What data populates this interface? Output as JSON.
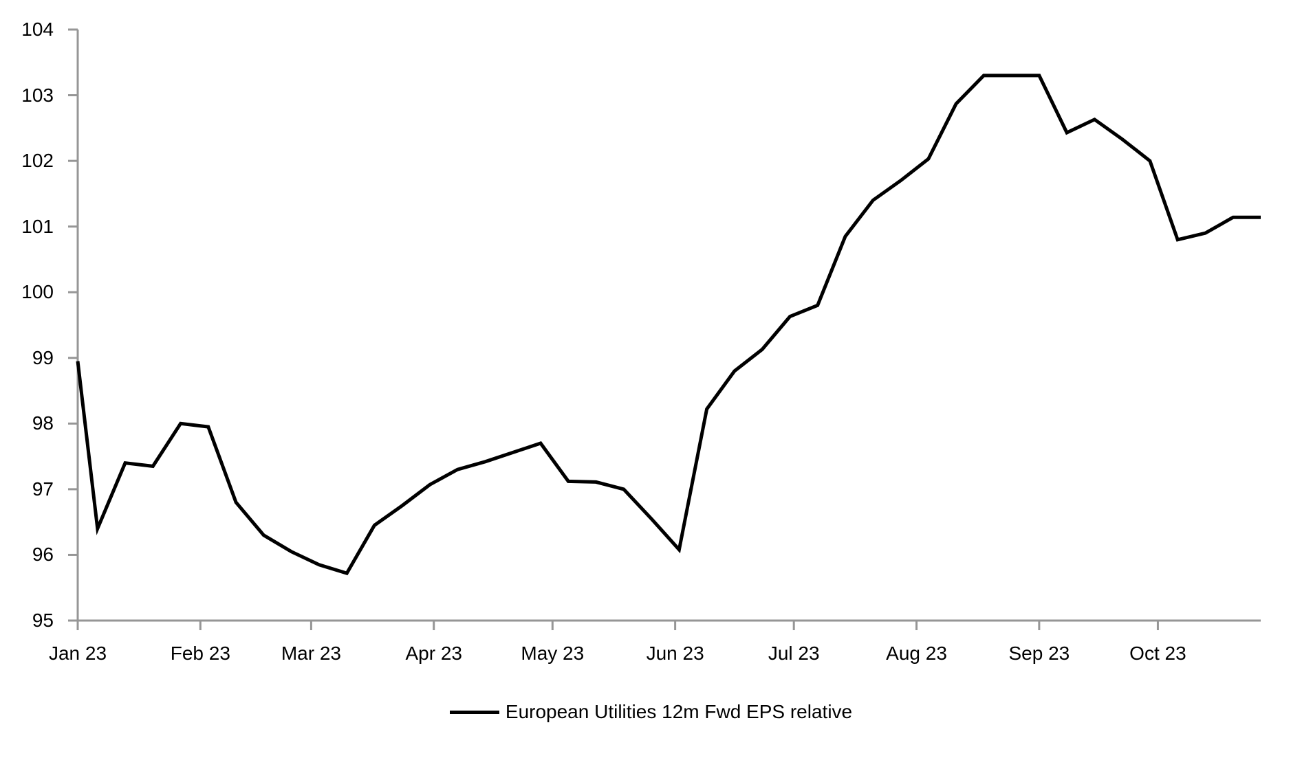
{
  "chart_data": {
    "type": "line",
    "title": "",
    "grid": "off",
    "background_color": "#ffffff",
    "axis_color": "#969696",
    "legend": {
      "label": "European Utilities 12m Fwd EPS relative",
      "position": "bottom-center",
      "line_color": "#000000"
    },
    "x_axis": {
      "tick_labels": [
        "Jan 23",
        "Feb 23",
        "Mar 23",
        "Apr 23",
        "May 23",
        "Jun 23",
        "Jul 23",
        "Aug 23",
        "Sep 23",
        "Oct 23"
      ],
      "tick_day_offsets": [
        0,
        31,
        59,
        90,
        120,
        151,
        181,
        212,
        243,
        273
      ],
      "range_days": [
        0,
        299
      ]
    },
    "y_axis": {
      "min": 95,
      "max": 104,
      "tick_step": 1,
      "tick_labels": [
        "95",
        "96",
        "97",
        "98",
        "99",
        "100",
        "101",
        "102",
        "103",
        "104"
      ]
    },
    "series": [
      {
        "name": "European Utilities 12m Fwd EPS relative",
        "color": "#000000",
        "frequency": "weekly",
        "x_day_offsets": [
          0,
          5,
          12,
          19,
          26,
          33,
          40,
          47,
          54,
          61,
          68,
          75,
          82,
          89,
          96,
          103,
          110,
          117,
          124,
          131,
          138,
          145,
          152,
          159,
          166,
          173,
          180,
          187,
          194,
          201,
          208,
          215,
          222,
          229,
          236,
          243,
          250,
          257,
          264,
          271,
          278,
          285,
          292,
          299
        ],
        "values": [
          98.95,
          96.4,
          97.4,
          97.35,
          98,
          97.95,
          96.8,
          96.3,
          96.05,
          95.85,
          95.72,
          96.45,
          96.75,
          97.07,
          97.3,
          97.42,
          97.56,
          97.7,
          97.12,
          97.11,
          97,
          96.55,
          96.08,
          98.22,
          98.8,
          99.13,
          99.63,
          99.8,
          100.85,
          101.4,
          101.7,
          102.03,
          102.87,
          103.3,
          103.3,
          103.3,
          102.43,
          102.63,
          102.33,
          102,
          100.8,
          100.9,
          101.14,
          101.14
        ]
      }
    ]
  }
}
